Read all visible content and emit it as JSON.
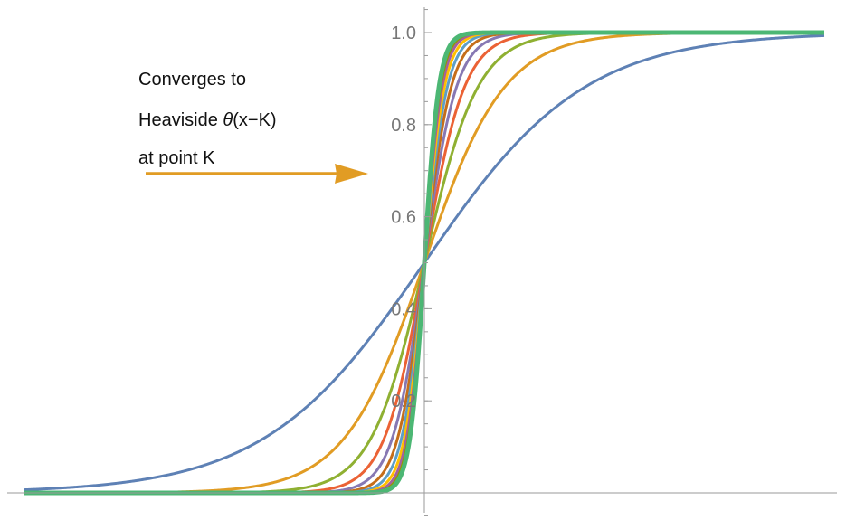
{
  "chart_data": {
    "type": "line",
    "title": "",
    "xlabel": "",
    "ylabel": "",
    "xlim": [
      -10,
      10
    ],
    "ylim": [
      0,
      1
    ],
    "x_center": 0,
    "y_ticks": [
      {
        "value": 0.2,
        "label": "0.2"
      },
      {
        "value": 0.4,
        "label": "0.4"
      },
      {
        "value": 0.6,
        "label": "0.6"
      },
      {
        "value": 0.8,
        "label": "0.8"
      },
      {
        "value": 1.0,
        "label": "1.0"
      }
    ],
    "y_minor_step": 0.05,
    "grid": false,
    "legend": "none",
    "curve_formula": "logistic sigmoid 1/(1+exp(-k*x)), steepness k = 0.5 * n for n = 1..11",
    "series": [
      {
        "k": 0.5,
        "color": "#5E81B5"
      },
      {
        "k": 1.0,
        "color": "#E19C24"
      },
      {
        "k": 1.5,
        "color": "#8FB032"
      },
      {
        "k": 2.0,
        "color": "#EB6235"
      },
      {
        "k": 2.5,
        "color": "#8778B3"
      },
      {
        "k": 3.0,
        "color": "#C56E1A"
      },
      {
        "k": 3.5,
        "color": "#5D9EC7"
      },
      {
        "k": 4.0,
        "color": "#FFBF00"
      },
      {
        "k": 4.5,
        "color": "#A5609D"
      },
      {
        "k": 5.0,
        "color": "#929600"
      },
      {
        "k": 5.5,
        "color": "#4CB774",
        "emphasis": "thick"
      }
    ],
    "annotation": {
      "lines": [
        "Converges to",
        "Heaviside θ(x−K)",
        "at point K"
      ],
      "arrow_color": "#E19C24"
    }
  }
}
